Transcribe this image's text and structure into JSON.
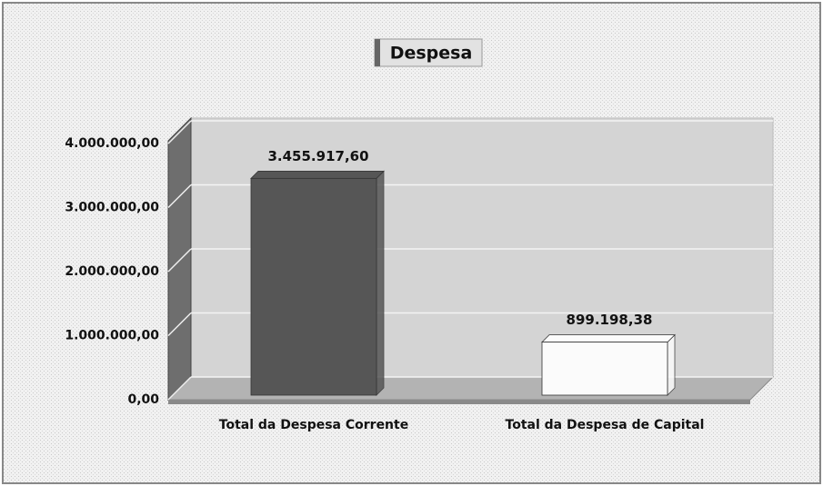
{
  "chart_data": {
    "type": "bar3d",
    "title": "Despesa",
    "categories": [
      "Total da Despesa Corrente",
      "Total da Despesa de Capital"
    ],
    "values": [
      3455917.6,
      899198.38
    ],
    "value_labels": [
      "3.455.917,60",
      "899.198,38"
    ],
    "colors": [
      "#565656",
      "#fbfbfb"
    ],
    "ylim": [
      0,
      4000000
    ],
    "yticks": [
      {
        "value": 0,
        "label": "0,00"
      },
      {
        "value": 1000000,
        "label": "1.000.000,00"
      },
      {
        "value": 2000000,
        "label": "2.000.000,00"
      },
      {
        "value": 3000000,
        "label": "3.000.000,00"
      },
      {
        "value": 4000000,
        "label": "4.000.000,00"
      }
    ],
    "grid": true
  }
}
